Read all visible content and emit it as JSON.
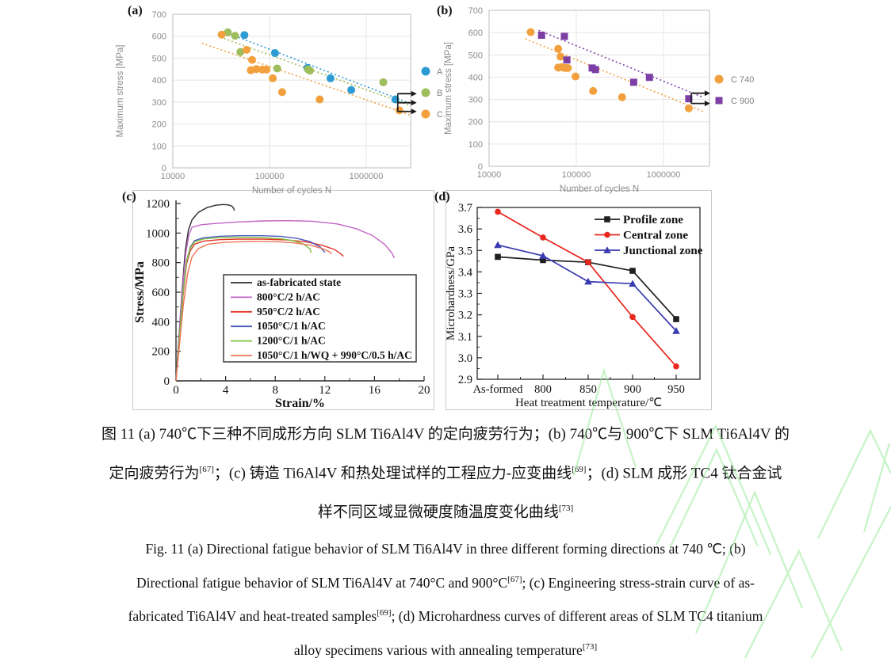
{
  "panels": {
    "a": "(a)",
    "b": "(b)",
    "c": "(c)",
    "d": "(d)"
  },
  "colors": {
    "series_a_blue": "#2d9bd3",
    "series_b_green": "#9ebe5b",
    "series_c_orange": "#f2a03d",
    "series_purple": "#7d3fa5",
    "watermark_green": "#8fe98f",
    "grid": "#e4e4e4",
    "frame": "#c7c7c7",
    "axis_text_gray": "#8c8c8c"
  },
  "chart_data": [
    {
      "id": "a",
      "type": "scatter",
      "x_scale": "log",
      "xlabel": "Number of cycles N",
      "ylabel": "Maximum stress [MPa]",
      "x_tick_labels": [
        "10000",
        "100000",
        "1000000"
      ],
      "ylim": [
        0,
        700
      ],
      "y_tick_step": 100,
      "grid": true,
      "legend_position": "right",
      "series": [
        {
          "name": "A",
          "color": "#2d9bd3",
          "marker": "circle",
          "points": [
            [
              55000,
              605
            ],
            [
              114000,
              523
            ],
            [
              246000,
              455
            ],
            [
              427000,
              408
            ],
            [
              700000,
              355
            ],
            [
              2000000,
              312
            ]
          ],
          "trend": [
            [
              40000,
              608
            ],
            [
              2900000,
              292
            ]
          ]
        },
        {
          "name": "B",
          "color": "#9ebe5b",
          "marker": "circle",
          "points": [
            [
              37000,
              618
            ],
            [
              44000,
              602
            ],
            [
              50000,
              528
            ],
            [
              120000,
              453
            ],
            [
              250000,
              449
            ],
            [
              262000,
              443
            ],
            [
              1500000,
              390
            ]
          ],
          "trend": [
            [
              31000,
              596
            ],
            [
              2900000,
              283
            ]
          ]
        },
        {
          "name": "C",
          "color": "#f2a03d",
          "marker": "circle",
          "points": [
            [
              32000,
              607
            ],
            [
              58000,
              538
            ],
            [
              66000,
              492
            ],
            [
              64000,
              445
            ],
            [
              73000,
              450
            ],
            [
              84000,
              448
            ],
            [
              93000,
              448
            ],
            [
              108000,
              408
            ],
            [
              135000,
              345
            ],
            [
              330000,
              312
            ],
            [
              2200000,
              262
            ]
          ],
          "trend": [
            [
              20000,
              568
            ],
            [
              2900000,
              240
            ]
          ]
        }
      ],
      "runout_arrows": [
        {
          "x": 2000000,
          "v": 338
        },
        {
          "x": 2000000,
          "v": 297
        },
        {
          "x": 2000000,
          "v": 257
        }
      ]
    },
    {
      "id": "b",
      "type": "scatter",
      "x_scale": "log",
      "xlabel": "Number of cycles N",
      "ylabel": "Maximum stress [MPa]",
      "x_tick_labels": [
        "10000",
        "100000",
        "1000000"
      ],
      "ylim": [
        0,
        700
      ],
      "y_tick_step": 100,
      "grid": true,
      "legend_position": "right",
      "series": [
        {
          "name": "C 740",
          "color": "#f2a03d",
          "marker": "circle",
          "points": [
            [
              30000,
              602
            ],
            [
              62000,
              527
            ],
            [
              66000,
              492
            ],
            [
              62000,
              443
            ],
            [
              68000,
              445
            ],
            [
              74000,
              441
            ],
            [
              80000,
              441
            ],
            [
              98000,
              403
            ],
            [
              156000,
              338
            ],
            [
              335000,
              310
            ],
            [
              1950000,
              260
            ]
          ],
          "trend": [
            [
              26000,
              572
            ],
            [
              2900000,
              245
            ]
          ]
        },
        {
          "name": "C 900",
          "color": "#7d3fa5",
          "marker": "square",
          "points": [
            [
              40000,
              588
            ],
            [
              73000,
              583
            ],
            [
              78000,
              477
            ],
            [
              152000,
              441
            ],
            [
              166000,
              434
            ],
            [
              455000,
              377
            ],
            [
              690000,
              399
            ],
            [
              1950000,
              303
            ]
          ],
          "trend": [
            [
              37000,
              610
            ],
            [
              2900000,
              308
            ]
          ]
        }
      ],
      "runout_arrows": [
        {
          "x": 1950000,
          "v": 328
        },
        {
          "x": 1950000,
          "v": 282
        }
      ]
    },
    {
      "id": "c",
      "type": "line",
      "xlabel": "Strain/%",
      "ylabel": "Stress/MPa",
      "xlim": [
        0,
        20
      ],
      "x_ticks": [
        0,
        4,
        8,
        12,
        16,
        20
      ],
      "ylim": [
        0,
        1200
      ],
      "y_ticks": [
        0,
        200,
        400,
        600,
        800,
        1000,
        1200
      ],
      "grid": false,
      "legend_position": "inside-bottom-right",
      "series": [
        {
          "name": "as-fabricated state",
          "color": "#2e2d2d",
          "points": [
            [
              0,
              0
            ],
            [
              0.5,
              620
            ],
            [
              0.75,
              880
            ],
            [
              1.0,
              1020
            ],
            [
              1.3,
              1090
            ],
            [
              1.8,
              1140
            ],
            [
              2.5,
              1172
            ],
            [
              3.2,
              1188
            ],
            [
              3.8,
              1193
            ],
            [
              4.2,
              1191
            ],
            [
              4.5,
              1183
            ],
            [
              4.65,
              1168
            ],
            [
              4.7,
              1152
            ]
          ]
        },
        {
          "name": "800°C/2 h/AC",
          "color": "#c363c3",
          "points": [
            [
              0,
              0
            ],
            [
              0.5,
              600
            ],
            [
              0.8,
              870
            ],
            [
              1.05,
              990
            ],
            [
              1.3,
              1040
            ],
            [
              2,
              1056
            ],
            [
              3,
              1064
            ],
            [
              5,
              1075
            ],
            [
              7,
              1082
            ],
            [
              9,
              1084
            ],
            [
              11,
              1080
            ],
            [
              13,
              1062
            ],
            [
              14.5,
              1030
            ],
            [
              15.8,
              985
            ],
            [
              16.8,
              925
            ],
            [
              17.4,
              865
            ],
            [
              17.6,
              832
            ]
          ]
        },
        {
          "name": "950°C/2 h/AC",
          "color": "#e23324",
          "points": [
            [
              0,
              0
            ],
            [
              0.55,
              560
            ],
            [
              0.85,
              790
            ],
            [
              1.15,
              880
            ],
            [
              1.5,
              925
            ],
            [
              2.2,
              945
            ],
            [
              3.5,
              955
            ],
            [
              5,
              959
            ],
            [
              7,
              959
            ],
            [
              9,
              953
            ],
            [
              10.5,
              940
            ],
            [
              11.8,
              917
            ],
            [
              12.8,
              888
            ],
            [
              13.4,
              852
            ],
            [
              13.5,
              842
            ]
          ]
        },
        {
          "name": "1050°C/1 h/AC",
          "color": "#4d58c0",
          "points": [
            [
              0,
              0
            ],
            [
              0.55,
              580
            ],
            [
              0.85,
              810
            ],
            [
              1.15,
              905
            ],
            [
              1.5,
              948
            ],
            [
              2.2,
              968
            ],
            [
              3.5,
              978
            ],
            [
              5,
              982
            ],
            [
              7,
              982
            ],
            [
              8.5,
              977
            ],
            [
              9.8,
              963
            ],
            [
              10.8,
              942
            ],
            [
              11.6,
              908
            ],
            [
              12.0,
              870
            ]
          ]
        },
        {
          "name": "1200°C/1 h/AC",
          "color": "#7fc241",
          "points": [
            [
              0,
              0
            ],
            [
              0.55,
              575
            ],
            [
              0.85,
              805
            ],
            [
              1.15,
              898
            ],
            [
              1.5,
              940
            ],
            [
              2.2,
              960
            ],
            [
              3.5,
              969
            ],
            [
              5,
              972
            ],
            [
              7,
              969
            ],
            [
              8.5,
              961
            ],
            [
              9.5,
              947
            ],
            [
              10.3,
              925
            ],
            [
              10.8,
              893
            ],
            [
              10.9,
              866
            ]
          ]
        },
        {
          "name": "1050°C/1 h/WQ + 990°C/0.5 h/AC",
          "color": "#ee7454",
          "points": [
            [
              0,
              0
            ],
            [
              0.6,
              520
            ],
            [
              0.95,
              730
            ],
            [
              1.3,
              840
            ],
            [
              1.8,
              895
            ],
            [
              2.6,
              925
            ],
            [
              4,
              938
            ],
            [
              6,
              944
            ],
            [
              8,
              942
            ],
            [
              9.5,
              934
            ],
            [
              10.8,
              918
            ],
            [
              11.8,
              895
            ],
            [
              12.4,
              872
            ],
            [
              12.55,
              858
            ]
          ]
        }
      ]
    },
    {
      "id": "d",
      "type": "line-markers",
      "xlabel": "Heat treatment temperature/℃",
      "ylabel": "Microhardness/GPa",
      "categories": [
        "As-formed",
        "800",
        "850",
        "900",
        "950"
      ],
      "ylim": [
        2.9,
        3.7
      ],
      "y_tick_step": 0.1,
      "grid": false,
      "legend_position": "inside-top-right",
      "series": [
        {
          "name": "Profile zone",
          "color": "#1f1f1f",
          "marker": "square",
          "values": [
            3.47,
            3.455,
            3.445,
            3.405,
            3.18
          ]
        },
        {
          "name": "Central zone",
          "color": "#e8271f",
          "marker": "circle",
          "values": [
            3.68,
            3.56,
            3.445,
            3.19,
            2.96
          ]
        },
        {
          "name": "Junctional zone",
          "color": "#3a3ab2",
          "marker": "triangle",
          "values": [
            3.525,
            3.475,
            3.355,
            3.345,
            3.125
          ]
        }
      ]
    }
  ],
  "caption": {
    "zh_lines": [
      [
        {
          "t": "图 11 (a) 740℃下三种不同成形方向 SLM Ti6Al4V 的定向疲劳行为；(b) 740℃与 900℃下 SLM Ti6Al4V 的"
        }
      ],
      [
        {
          "t": "定向疲劳行为"
        },
        {
          "t": "[67]",
          "sup": true
        },
        {
          "t": "；(c) 铸造 Ti6Al4V 和热处理试样的工程应力-应变曲线"
        },
        {
          "t": "[69]",
          "sup": true
        },
        {
          "t": "；(d) SLM 成形 TC4 钛合金试"
        }
      ],
      [
        {
          "t": "样不同区域显微硬度随温度变化曲线"
        },
        {
          "t": "[73]",
          "sup": true
        }
      ]
    ],
    "en_lines": [
      [
        {
          "t": "Fig. 11 (a) Directional fatigue behavior of SLM Ti6Al4V in three different forming directions at 740 ℃; (b)"
        }
      ],
      [
        {
          "t": "Directional fatigue behavior of SLM Ti6Al4V at 740°C and 900°C"
        },
        {
          "t": "[67]",
          "sup": true
        },
        {
          "t": "; (c) Engineering stress-strain curve of as-"
        }
      ],
      [
        {
          "t": "fabricated Ti6Al4V and heat-treated samples"
        },
        {
          "t": "[69]",
          "sup": true
        },
        {
          "t": "; (d) Microhardness curves of different areas of SLM TC4 titanium"
        }
      ],
      [
        {
          "t": "alloy specimens various with annealing temperature"
        },
        {
          "t": "[73]",
          "sup": true
        }
      ]
    ]
  }
}
